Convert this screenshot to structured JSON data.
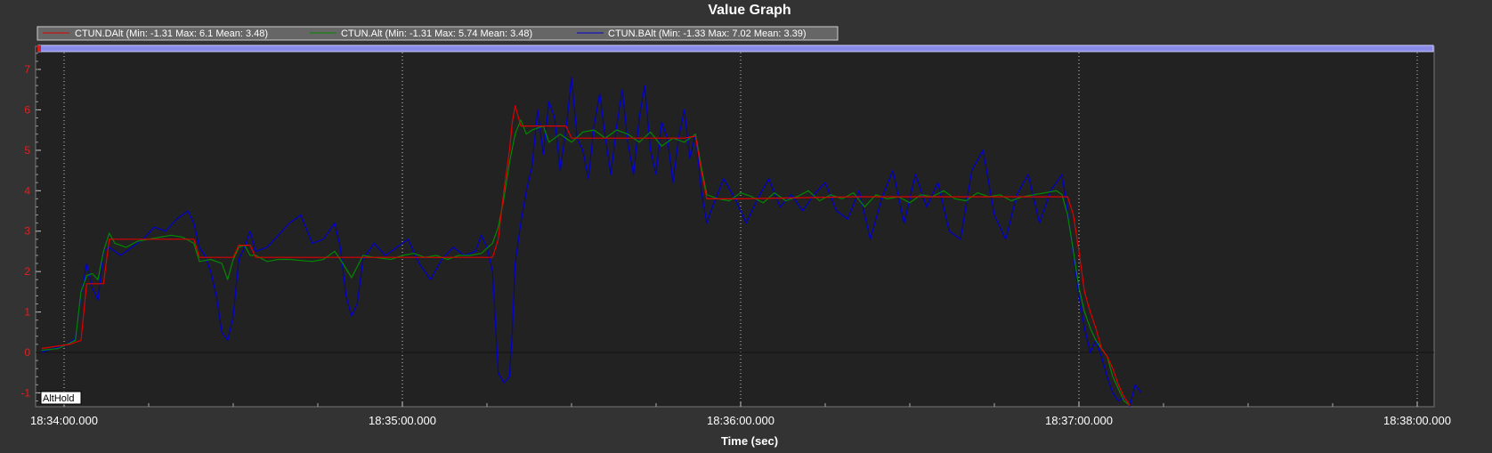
{
  "window": {
    "background": "#333333",
    "plot_background": "#222222"
  },
  "chart_data": {
    "type": "line",
    "title": "Value Graph",
    "xlabel": "Time (sec)",
    "ylabel": "",
    "x_start": "18:34:00.000",
    "x_end": "18:38:00.000",
    "xlim_seconds": [
      0,
      244
    ],
    "ylim": [
      -1.35,
      7.6
    ],
    "x_ticks": [
      "18:34:00.000",
      "18:35:00.000",
      "18:36:00.000",
      "18:37:00.000",
      "18:38:00.000"
    ],
    "y_ticks": [
      -1,
      0,
      1,
      2,
      3,
      4,
      5,
      6,
      7
    ],
    "grid": true,
    "legend_position": "top-left",
    "annotation": "AltHold",
    "zero_line": true,
    "series": [
      {
        "name": "CTUN.DAlt",
        "legend": "CTUN.DAlt  (Min: -1.31 Max: 6.1 Mean: 3.48)",
        "color": "#dd0000",
        "points": [
          [
            -4,
            0.1
          ],
          [
            1,
            0.2
          ],
          [
            3,
            0.3
          ],
          [
            4,
            1.7
          ],
          [
            7,
            1.7
          ],
          [
            8,
            2.8
          ],
          [
            23,
            2.8
          ],
          [
            24,
            2.35
          ],
          [
            30,
            2.35
          ],
          [
            31,
            2.65
          ],
          [
            33,
            2.65
          ],
          [
            34,
            2.35
          ],
          [
            55,
            2.35
          ],
          [
            64,
            2.35
          ],
          [
            75,
            2.35
          ],
          [
            76,
            2.35
          ],
          [
            77,
            2.8
          ],
          [
            78,
            4.0
          ],
          [
            79,
            5.0
          ],
          [
            79.5,
            5.7
          ],
          [
            80,
            6.1
          ],
          [
            81,
            5.6
          ],
          [
            89,
            5.6
          ],
          [
            90,
            5.3
          ],
          [
            102,
            5.3
          ],
          [
            110,
            5.3
          ],
          [
            112,
            5.35
          ],
          [
            113,
            4.5
          ],
          [
            114,
            3.8
          ],
          [
            120,
            3.8
          ],
          [
            140,
            3.85
          ],
          [
            165,
            3.85
          ],
          [
            176,
            3.85
          ],
          [
            178,
            3.85
          ],
          [
            179,
            3.4
          ],
          [
            180,
            2.5
          ],
          [
            181,
            1.5
          ],
          [
            182,
            1.0
          ],
          [
            183,
            0.6
          ],
          [
            184,
            0.1
          ],
          [
            185,
            -0.1
          ],
          [
            186,
            -0.4
          ],
          [
            187,
            -0.8
          ],
          [
            188,
            -1.1
          ],
          [
            189,
            -1.31
          ]
        ]
      },
      {
        "name": "CTUN.Alt",
        "legend": "CTUN.Alt  (Min: -1.31 Max: 5.74 Mean: 3.48)",
        "color": "#008800",
        "points": [
          [
            -4,
            0.05
          ],
          [
            -1,
            0.1
          ],
          [
            2,
            0.3
          ],
          [
            3,
            1.5
          ],
          [
            4,
            1.9
          ],
          [
            5,
            1.95
          ],
          [
            6,
            1.8
          ],
          [
            7,
            2.5
          ],
          [
            8,
            2.95
          ],
          [
            9,
            2.7
          ],
          [
            11,
            2.6
          ],
          [
            13,
            2.75
          ],
          [
            15,
            2.8
          ],
          [
            17,
            2.85
          ],
          [
            19,
            2.9
          ],
          [
            21,
            2.85
          ],
          [
            23,
            2.7
          ],
          [
            24,
            2.25
          ],
          [
            26,
            2.3
          ],
          [
            28,
            2.2
          ],
          [
            29,
            1.8
          ],
          [
            30,
            2.3
          ],
          [
            31,
            2.6
          ],
          [
            32,
            2.65
          ],
          [
            33,
            2.4
          ],
          [
            34,
            2.4
          ],
          [
            36,
            2.25
          ],
          [
            38,
            2.3
          ],
          [
            40,
            2.3
          ],
          [
            44,
            2.25
          ],
          [
            46,
            2.3
          ],
          [
            48,
            2.5
          ],
          [
            49,
            2.3
          ],
          [
            51,
            1.85
          ],
          [
            53,
            2.4
          ],
          [
            55,
            2.35
          ],
          [
            58,
            2.3
          ],
          [
            60,
            2.4
          ],
          [
            62,
            2.45
          ],
          [
            64,
            2.35
          ],
          [
            66,
            2.4
          ],
          [
            68,
            2.3
          ],
          [
            70,
            2.4
          ],
          [
            72,
            2.4
          ],
          [
            74,
            2.45
          ],
          [
            76,
            2.7
          ],
          [
            77,
            3.1
          ],
          [
            78,
            3.8
          ],
          [
            79,
            4.7
          ],
          [
            80,
            5.4
          ],
          [
            81,
            5.75
          ],
          [
            82,
            5.4
          ],
          [
            83,
            5.5
          ],
          [
            85,
            5.6
          ],
          [
            86,
            5.2
          ],
          [
            88,
            5.4
          ],
          [
            90,
            5.2
          ],
          [
            92,
            5.45
          ],
          [
            94,
            5.5
          ],
          [
            96,
            5.3
          ],
          [
            98,
            5.5
          ],
          [
            100,
            5.4
          ],
          [
            102,
            5.2
          ],
          [
            104,
            5.45
          ],
          [
            106,
            5.1
          ],
          [
            108,
            5.3
          ],
          [
            110,
            5.2
          ],
          [
            112,
            5.4
          ],
          [
            113,
            4.6
          ],
          [
            114,
            3.9
          ],
          [
            116,
            3.8
          ],
          [
            118,
            3.75
          ],
          [
            120,
            3.95
          ],
          [
            122,
            3.85
          ],
          [
            124,
            3.7
          ],
          [
            126,
            3.95
          ],
          [
            128,
            3.75
          ],
          [
            130,
            3.85
          ],
          [
            132,
            4.0
          ],
          [
            134,
            3.75
          ],
          [
            136,
            3.9
          ],
          [
            138,
            3.8
          ],
          [
            140,
            3.95
          ],
          [
            142,
            3.6
          ],
          [
            144,
            3.9
          ],
          [
            146,
            3.8
          ],
          [
            148,
            3.85
          ],
          [
            150,
            3.7
          ],
          [
            152,
            3.9
          ],
          [
            154,
            3.85
          ],
          [
            156,
            4.0
          ],
          [
            158,
            3.8
          ],
          [
            160,
            3.75
          ],
          [
            162,
            3.95
          ],
          [
            164,
            3.85
          ],
          [
            166,
            3.9
          ],
          [
            168,
            3.75
          ],
          [
            170,
            3.85
          ],
          [
            172,
            3.9
          ],
          [
            174,
            3.95
          ],
          [
            176,
            4.0
          ],
          [
            177,
            3.9
          ],
          [
            178,
            3.4
          ],
          [
            179,
            2.5
          ],
          [
            180,
            1.6
          ],
          [
            181,
            1.0
          ],
          [
            182,
            0.6
          ],
          [
            183,
            0.3
          ],
          [
            184,
            0.1
          ],
          [
            185,
            -0.1
          ],
          [
            186,
            -0.6
          ],
          [
            187,
            -0.9
          ],
          [
            188,
            -1.2
          ],
          [
            189,
            -1.31
          ]
        ]
      },
      {
        "name": "CTUN.BAlt",
        "legend": "CTUN.BAlt  (Min: -1.33 Max: 7.02 Mean: 3.39)",
        "color": "#0000cc",
        "points": [
          [
            -4,
            0.0
          ],
          [
            -2,
            0.1
          ],
          [
            0,
            0.15
          ],
          [
            1,
            0.25
          ],
          [
            2,
            0.35
          ],
          [
            3,
            1.4
          ],
          [
            4,
            2.2
          ],
          [
            5,
            1.6
          ],
          [
            6,
            1.3
          ],
          [
            7,
            2.5
          ],
          [
            8,
            2.6
          ],
          [
            10,
            2.4
          ],
          [
            12,
            2.6
          ],
          [
            14,
            2.8
          ],
          [
            16,
            3.1
          ],
          [
            18,
            3.0
          ],
          [
            20,
            3.3
          ],
          [
            22,
            3.5
          ],
          [
            23,
            3.2
          ],
          [
            24,
            2.6
          ],
          [
            25,
            2.4
          ],
          [
            26,
            2.0
          ],
          [
            27,
            1.4
          ],
          [
            28,
            0.5
          ],
          [
            29,
            0.3
          ],
          [
            30,
            0.9
          ],
          [
            31,
            2.3
          ],
          [
            32,
            2.6
          ],
          [
            33,
            3.0
          ],
          [
            34,
            2.5
          ],
          [
            36,
            2.6
          ],
          [
            38,
            2.9
          ],
          [
            40,
            3.2
          ],
          [
            42,
            3.4
          ],
          [
            44,
            2.7
          ],
          [
            46,
            2.8
          ],
          [
            48,
            3.2
          ],
          [
            49,
            2.6
          ],
          [
            50,
            1.4
          ],
          [
            51,
            0.9
          ],
          [
            52,
            1.2
          ],
          [
            53,
            2.3
          ],
          [
            55,
            2.7
          ],
          [
            57,
            2.4
          ],
          [
            59,
            2.6
          ],
          [
            61,
            2.8
          ],
          [
            63,
            2.2
          ],
          [
            65,
            1.8
          ],
          [
            67,
            2.3
          ],
          [
            69,
            2.6
          ],
          [
            71,
            2.4
          ],
          [
            73,
            2.5
          ],
          [
            74,
            2.9
          ],
          [
            75,
            2.6
          ],
          [
            76,
            2.0
          ],
          [
            77,
            -0.5
          ],
          [
            78,
            -0.75
          ],
          [
            79,
            -0.6
          ],
          [
            79.5,
            0.5
          ],
          [
            80,
            2.2
          ],
          [
            81,
            3.2
          ],
          [
            82,
            4.0
          ],
          [
            83,
            4.6
          ],
          [
            84,
            6.0
          ],
          [
            85,
            4.9
          ],
          [
            86,
            6.2
          ],
          [
            87,
            5.8
          ],
          [
            88,
            4.5
          ],
          [
            89,
            5.5
          ],
          [
            90,
            6.8
          ],
          [
            91,
            5.3
          ],
          [
            92,
            5.0
          ],
          [
            93,
            4.3
          ],
          [
            94,
            5.6
          ],
          [
            95,
            6.4
          ],
          [
            96,
            5.3
          ],
          [
            97,
            4.4
          ],
          [
            98,
            5.6
          ],
          [
            99,
            6.5
          ],
          [
            100,
            5.2
          ],
          [
            101,
            4.4
          ],
          [
            102,
            5.8
          ],
          [
            103,
            6.6
          ],
          [
            104,
            5.0
          ],
          [
            105,
            4.4
          ],
          [
            106,
            5.7
          ],
          [
            107,
            5.3
          ],
          [
            108,
            4.2
          ],
          [
            109,
            5.3
          ],
          [
            110,
            6.0
          ],
          [
            111,
            4.8
          ],
          [
            112,
            5.4
          ],
          [
            113,
            4.0
          ],
          [
            114,
            3.2
          ],
          [
            115,
            3.6
          ],
          [
            117,
            4.3
          ],
          [
            119,
            3.8
          ],
          [
            121,
            3.2
          ],
          [
            123,
            3.8
          ],
          [
            125,
            4.3
          ],
          [
            127,
            3.6
          ],
          [
            129,
            3.9
          ],
          [
            131,
            3.5
          ],
          [
            133,
            3.9
          ],
          [
            135,
            4.2
          ],
          [
            137,
            3.5
          ],
          [
            139,
            3.3
          ],
          [
            141,
            4.0
          ],
          [
            143,
            2.8
          ],
          [
            145,
            3.8
          ],
          [
            147,
            4.5
          ],
          [
            149,
            3.2
          ],
          [
            151,
            4.4
          ],
          [
            153,
            3.6
          ],
          [
            155,
            4.2
          ],
          [
            157,
            3.0
          ],
          [
            159,
            2.8
          ],
          [
            161,
            4.5
          ],
          [
            163,
            5.0
          ],
          [
            165,
            3.4
          ],
          [
            167,
            2.8
          ],
          [
            169,
            3.9
          ],
          [
            171,
            4.4
          ],
          [
            173,
            3.2
          ],
          [
            175,
            4.0
          ],
          [
            177,
            4.4
          ],
          [
            178,
            3.5
          ],
          [
            179,
            2.4
          ],
          [
            180,
            1.4
          ],
          [
            181,
            0.6
          ],
          [
            182,
            0.0
          ],
          [
            183,
            0.3
          ],
          [
            184,
            -0.1
          ],
          [
            185,
            -0.6
          ],
          [
            186,
            -1.0
          ],
          [
            187,
            -1.2
          ],
          [
            188,
            -1.1
          ],
          [
            189,
            -1.33
          ],
          [
            190,
            -0.8
          ],
          [
            191,
            -1.0
          ]
        ]
      }
    ]
  }
}
